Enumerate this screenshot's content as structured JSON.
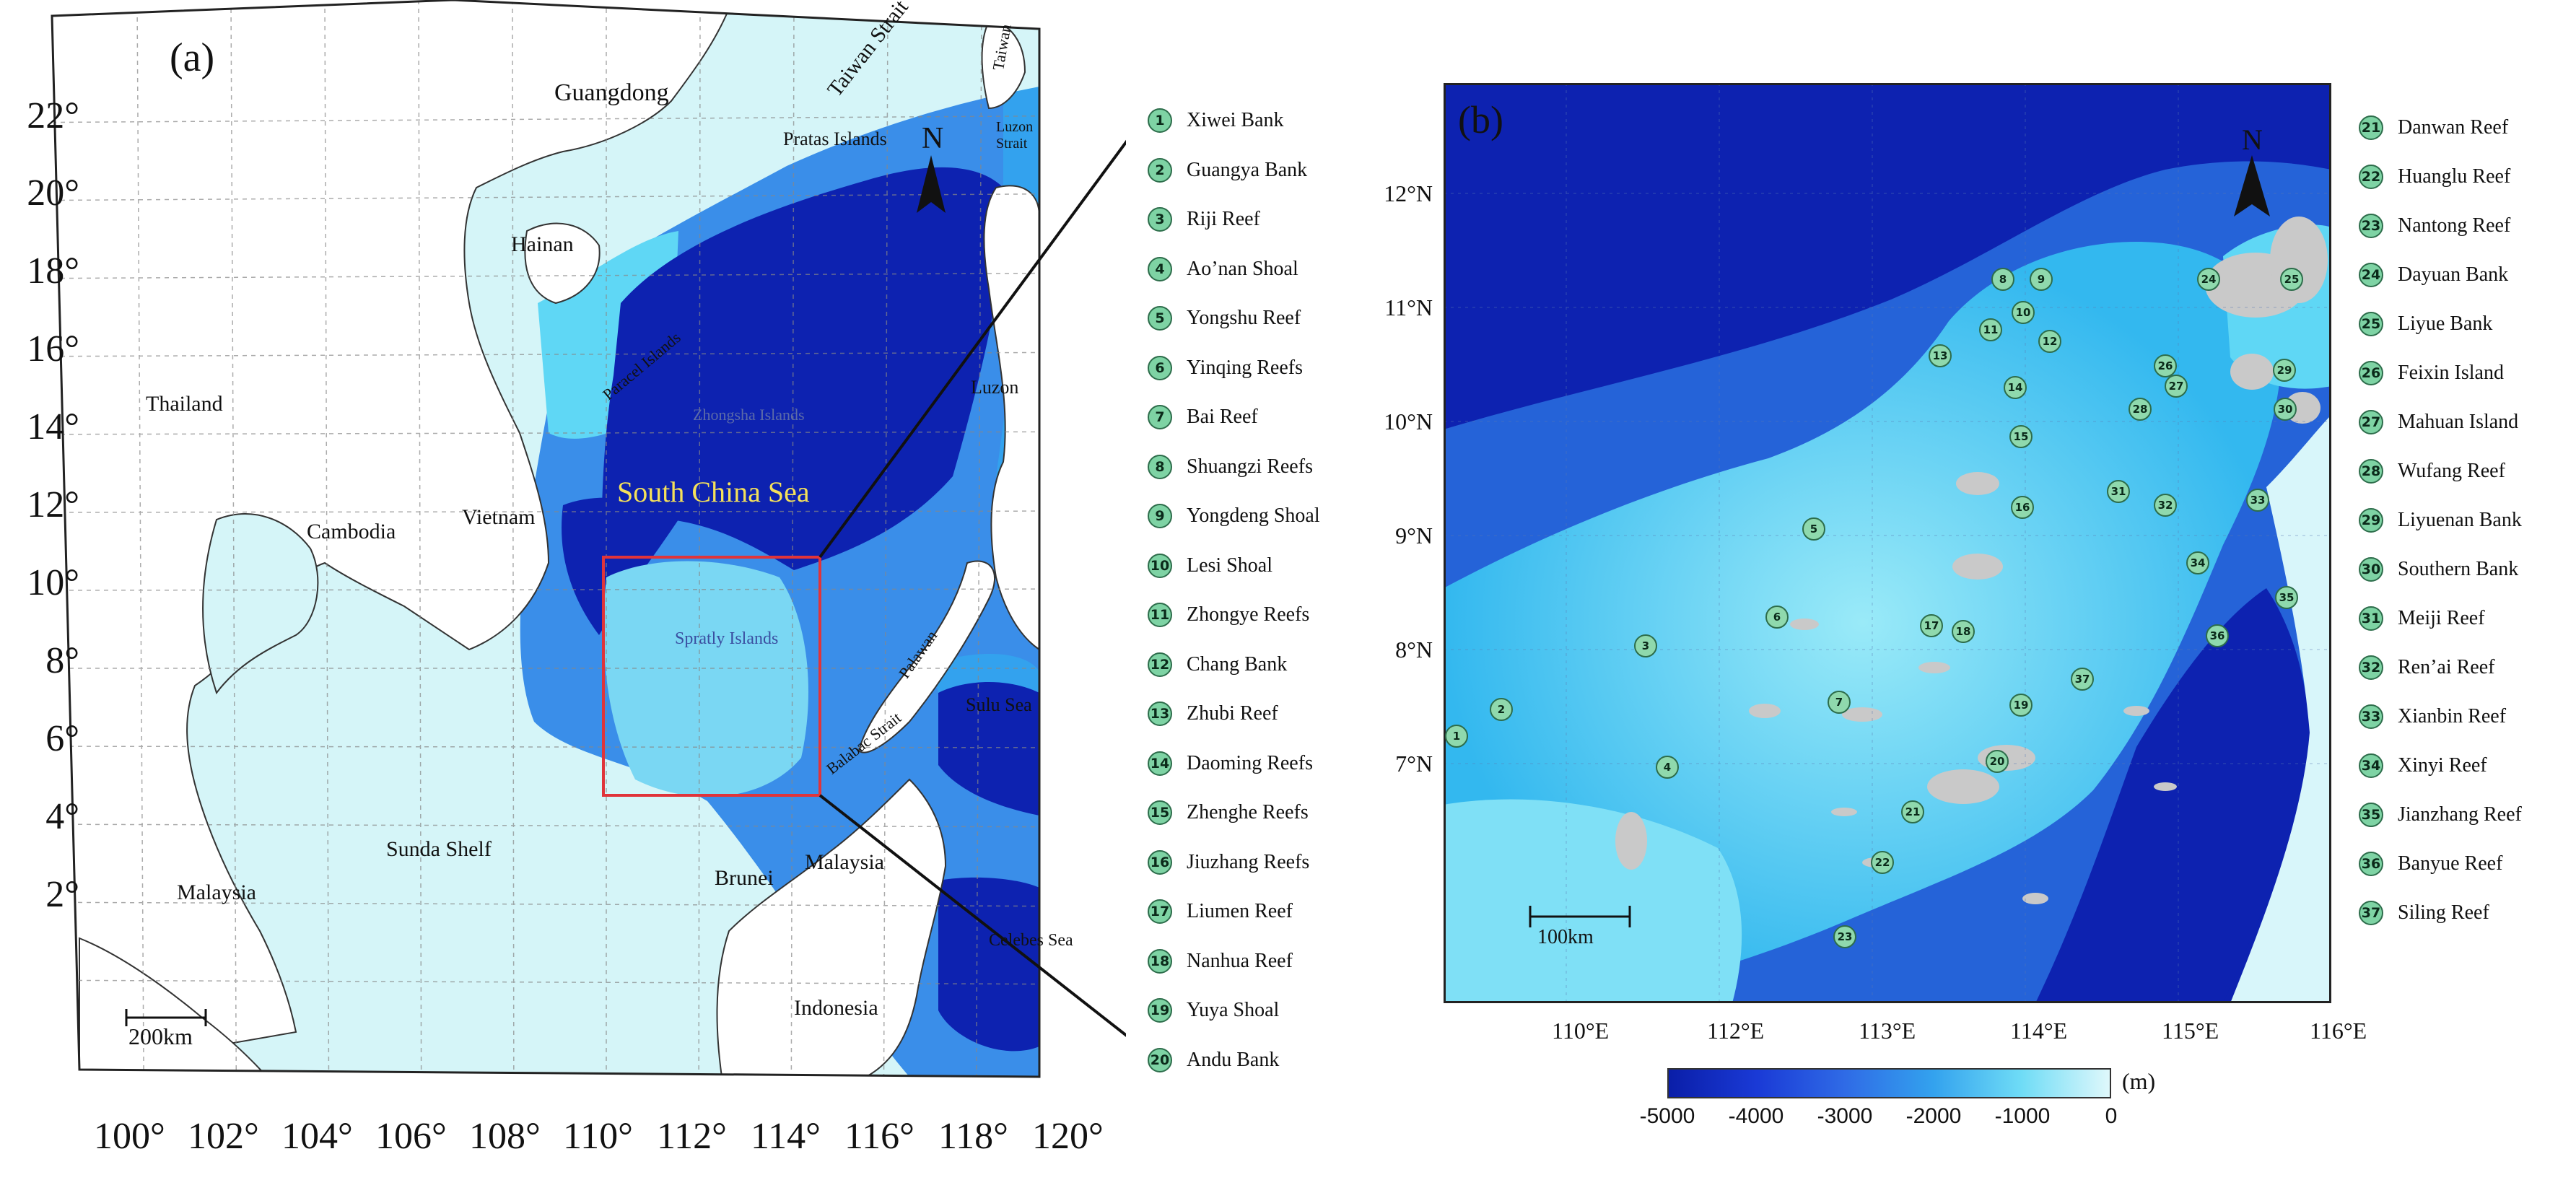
{
  "panel_a": {
    "label": "(a)",
    "lat_labels": [
      "22°",
      "20°",
      "18°",
      "16°",
      "14°",
      "12°",
      "10°",
      "8°",
      "6°",
      "4°",
      "2°"
    ],
    "lon_labels": [
      "100°",
      "102°",
      "104°",
      "106°",
      "108°",
      "110°",
      "112°",
      "114°",
      "116°",
      "118°",
      "120°"
    ],
    "places": {
      "guangdong": "Guangdong",
      "taiwan_strait": "Taiwan Strait",
      "taiwan": "Taiwan",
      "pratas": "Pratas Islands",
      "luzon_strait": "Luzon Strait",
      "hainan": "Hainan",
      "paracel": "Paracel Islands",
      "zhongsha": "Zhongsha Islands",
      "luzon": "Luzon",
      "thailand": "Thailand",
      "cambodia": "Cambodia",
      "vietnam": "Vietnam",
      "scs": "South China Sea",
      "spratly": "Spratly Islands",
      "palawan": "Palawan",
      "sulu": "Sulu Sea",
      "balabac": "Balabac Strait",
      "sunda": "Sunda Shelf",
      "malaysia_w": "Malaysia",
      "brunei": "Brunei",
      "malaysia_e": "Malaysia",
      "celebes": "Celebes Sea",
      "indonesia": "Indonesia"
    },
    "scale_bar": "200km",
    "north": "N"
  },
  "panel_b": {
    "label": "(b)",
    "lat_labels": [
      "12°N",
      "11°N",
      "10°N",
      "9°N",
      "8°N",
      "7°N"
    ],
    "lon_labels": [
      "110°E",
      "112°E",
      "113°E",
      "114°E",
      "115°E",
      "116°E"
    ],
    "scale_bar": "100km",
    "north": "N"
  },
  "legend_left": [
    {
      "num": "1",
      "name": "Xiwei Bank"
    },
    {
      "num": "2",
      "name": "Guangya Bank"
    },
    {
      "num": "3",
      "name": "Riji Reef"
    },
    {
      "num": "4",
      "name": "Ao’nan Shoal"
    },
    {
      "num": "5",
      "name": "Yongshu Reef"
    },
    {
      "num": "6",
      "name": "Yinqing Reefs"
    },
    {
      "num": "7",
      "name": "Bai Reef"
    },
    {
      "num": "8",
      "name": "Shuangzi Reefs"
    },
    {
      "num": "9",
      "name": "Yongdeng Shoal"
    },
    {
      "num": "10",
      "name": "Lesi Shoal"
    },
    {
      "num": "11",
      "name": "Zhongye Reefs"
    },
    {
      "num": "12",
      "name": "Chang Bank"
    },
    {
      "num": "13",
      "name": "Zhubi Reef"
    },
    {
      "num": "14",
      "name": "Daoming Reefs"
    },
    {
      "num": "15",
      "name": "Zhenghe Reefs"
    },
    {
      "num": "16",
      "name": "Jiuzhang Reefs"
    },
    {
      "num": "17",
      "name": "Liumen Reef"
    },
    {
      "num": "18",
      "name": "Nanhua Reef"
    },
    {
      "num": "19",
      "name": "Yuya Shoal"
    },
    {
      "num": "20",
      "name": "Andu Bank"
    }
  ],
  "legend_right": [
    {
      "num": "21",
      "name": "Danwan Reef"
    },
    {
      "num": "22",
      "name": "Huanglu Reef"
    },
    {
      "num": "23",
      "name": "Nantong Reef"
    },
    {
      "num": "24",
      "name": "Dayuan Bank"
    },
    {
      "num": "25",
      "name": "Liyue Bank"
    },
    {
      "num": "26",
      "name": "Feixin Island"
    },
    {
      "num": "27",
      "name": "Mahuan Island"
    },
    {
      "num": "28",
      "name": "Wufang Reef"
    },
    {
      "num": "29",
      "name": "Liyuenan Bank"
    },
    {
      "num": "30",
      "name": "Southern Bank"
    },
    {
      "num": "31",
      "name": "Meiji Reef"
    },
    {
      "num": "32",
      "name": "Ren’ai Reef"
    },
    {
      "num": "33",
      "name": "Xianbin Reef"
    },
    {
      "num": "34",
      "name": "Xinyi Reef"
    },
    {
      "num": "35",
      "name": "Jianzhang Reef"
    },
    {
      "num": "36",
      "name": "Banyue Reef"
    },
    {
      "num": "37",
      "name": "Siling Reef"
    }
  ],
  "colorbar": {
    "unit": "(m)",
    "ticks": [
      "-5000",
      "-4000",
      "-3000",
      "-2000",
      "-1000",
      "0"
    ],
    "colors": [
      "#0a1ea8",
      "#1a3ad6",
      "#2f6be6",
      "#33a2ee",
      "#6fdcf6",
      "#dff8fb"
    ]
  },
  "colors": {
    "deep": "#0d22b0",
    "mid": "#2b78e8",
    "shallow": "#5fd7f5",
    "shelf": "#d5f5f8",
    "land": "#ffffff",
    "reef": "#c8c8c8",
    "marker": "#8fd9ad",
    "box": "#e0343a"
  }
}
